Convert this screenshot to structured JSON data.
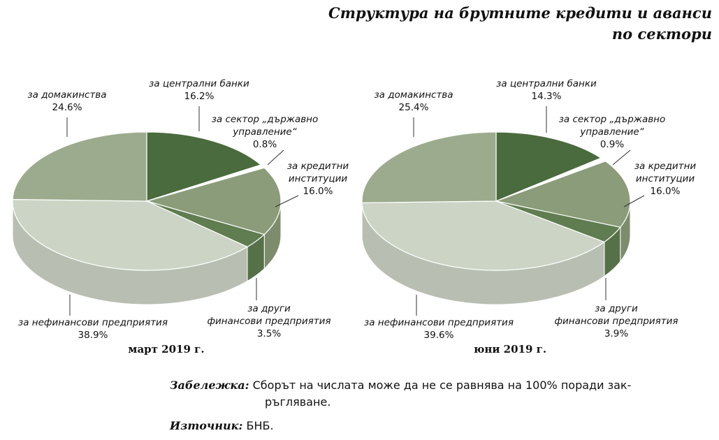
{
  "title": {
    "line1": "Структура на брутните кредити и аванси",
    "line2": "по сектори"
  },
  "note": {
    "label": "Забележка:",
    "text_line1": "Сборът на числата може да не се равнява на 100% поради зак-",
    "text_line2": "ръгляване."
  },
  "source": {
    "label": "Източник:",
    "text": "БНБ."
  },
  "colors": {
    "central_banks": "#4a6b3d",
    "general_government": "#ffffff",
    "credit_institutions": "#8a9c79",
    "other_financial": "#5f7d50",
    "non_financial": "#ccd4c6",
    "households": "#9cab8d"
  },
  "chart_data": [
    {
      "type": "pie",
      "title": "март 2019 г.",
      "slices": [
        {
          "key": "central_banks",
          "label_lines": [
            "за централни банки"
          ],
          "value": 16.2,
          "value_label": "16.2%"
        },
        {
          "key": "general_government",
          "label_lines": [
            "за сектор „държавно",
            "управление“"
          ],
          "value": 0.8,
          "value_label": "0.8%"
        },
        {
          "key": "credit_institutions",
          "label_lines": [
            "за кредитни",
            "институции"
          ],
          "value": 16.0,
          "value_label": "16.0%"
        },
        {
          "key": "other_financial",
          "label_lines": [
            "за други",
            "финансови предприятия"
          ],
          "value": 3.5,
          "value_label": "3.5%"
        },
        {
          "key": "non_financial",
          "label_lines": [
            "за нефинансови предприятия"
          ],
          "value": 38.9,
          "value_label": "38.9%"
        },
        {
          "key": "households",
          "label_lines": [
            "за домакинства"
          ],
          "value": 24.6,
          "value_label": "24.6%"
        }
      ]
    },
    {
      "type": "pie",
      "title": "юни 2019 г.",
      "slices": [
        {
          "key": "central_banks",
          "label_lines": [
            "за централни банки"
          ],
          "value": 14.3,
          "value_label": "14.3%"
        },
        {
          "key": "general_government",
          "label_lines": [
            "за сектор „държавно",
            "управление“"
          ],
          "value": 0.9,
          "value_label": "0.9%"
        },
        {
          "key": "credit_institutions",
          "label_lines": [
            "за кредитни",
            "институции"
          ],
          "value": 16.0,
          "value_label": "16.0%"
        },
        {
          "key": "other_financial",
          "label_lines": [
            "за други",
            "финансови предприятия"
          ],
          "value": 3.9,
          "value_label": "3.9%"
        },
        {
          "key": "non_financial",
          "label_lines": [
            "за нефинансови предприятия"
          ],
          "value": 39.6,
          "value_label": "39.6%"
        },
        {
          "key": "households",
          "label_lines": [
            "за домакинства"
          ],
          "value": 25.4,
          "value_label": "25.4%"
        }
      ]
    }
  ]
}
